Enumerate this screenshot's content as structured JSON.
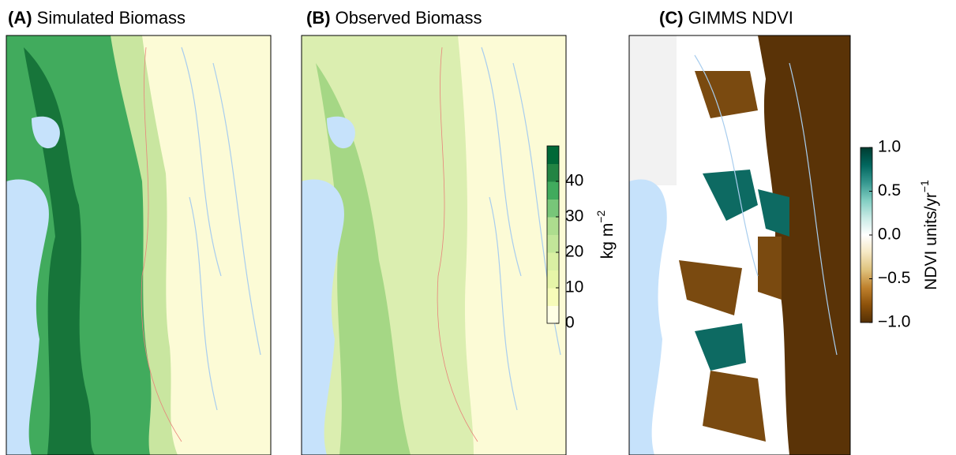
{
  "panels": [
    {
      "label": "(A)",
      "title": "Simulated Biomass"
    },
    {
      "label": "(B)",
      "title": "Observed Biomass"
    },
    {
      "label": "(C)",
      "title": "GIMMS NDVI"
    }
  ],
  "colorbars": [
    {
      "label": "kg m",
      "label_sup": "−2",
      "lim": [
        0,
        50
      ],
      "ticks": [
        0,
        10,
        20,
        30,
        40
      ],
      "colors": [
        "#ffffe5",
        "#f7fcb9",
        "#e6f5a8",
        "#d9f0a3",
        "#c2e699",
        "#addd8e",
        "#78c679",
        "#41ab5d",
        "#238443",
        "#006837"
      ]
    },
    {
      "label": "NDVI units/yr",
      "label_sup": "−1",
      "lim": [
        -1,
        1
      ],
      "ticks": [
        {
          "value": 1,
          "label": "1.0"
        },
        {
          "value": 0.5,
          "label": "0.5"
        },
        {
          "value": 0,
          "label": "0.0"
        },
        {
          "value": -0.5,
          "label": "−0.5"
        },
        {
          "value": -1,
          "label": "−1.0"
        }
      ],
      "colors": [
        "#543005",
        "#8c510a",
        "#bf812d",
        "#dfc27d",
        "#f6e8c3",
        "#ffffff",
        "#c7eae5",
        "#80cdc1",
        "#35978f",
        "#01665e",
        "#003c30"
      ]
    }
  ]
}
